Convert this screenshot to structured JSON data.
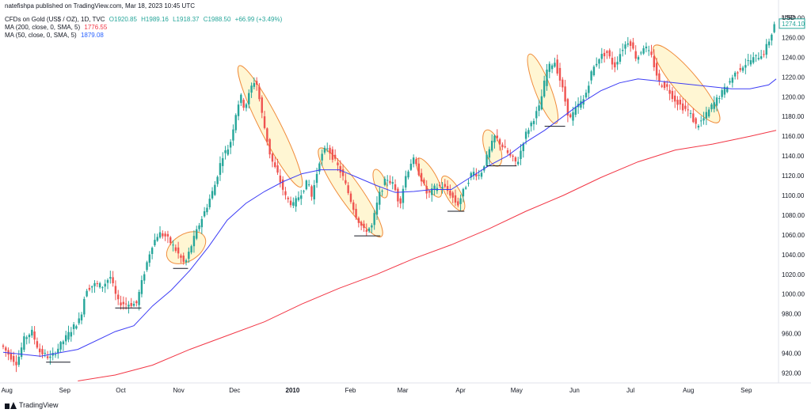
{
  "publisher_line": "natefishpa published on TradingView.com, Mar 18, 2023 10:45 UTC",
  "legend": {
    "symbol": "CFDs on Gold (US$ / OZ), 1D, TVC",
    "ohlc": {
      "o_label": "O1920.85",
      "h_label": "H1989.16",
      "l_label": "L1918.37",
      "c_label": "C1988.50",
      "change": "+66.99 (+3.49%)"
    },
    "ma200": {
      "label": "MA (200, close, 0, SMA, 5)",
      "value": "1776.55"
    },
    "ma50": {
      "label": "MA (50, close, 0, SMA, 5)",
      "value": "1879.08"
    }
  },
  "footer": {
    "brand": "TradingView"
  },
  "colors": {
    "up": "#26a69a",
    "down": "#ef5350",
    "ma200": "#f23645",
    "ma50": "#3d3df5",
    "highlight_fill": "#fff3c4",
    "highlight_stroke": "#f08c3c",
    "axis_text": "#131722"
  },
  "chart_data": {
    "type": "candlestick",
    "currency_label": "USD",
    "ylim": [
      910,
      1290
    ],
    "y_ticks": [
      920,
      940,
      960,
      980,
      1000,
      1020,
      1040,
      1060,
      1080,
      1100,
      1120,
      1140,
      1160,
      1180,
      1200,
      1220,
      1240,
      1260,
      1280
    ],
    "x_ticks": [
      {
        "label": "Aug",
        "day": 2
      },
      {
        "label": "Sep",
        "day": 33
      },
      {
        "label": "Oct",
        "day": 63
      },
      {
        "label": "Nov",
        "day": 94
      },
      {
        "label": "Dec",
        "day": 124
      },
      {
        "label": "2010",
        "day": 155
      },
      {
        "label": "Feb",
        "day": 186
      },
      {
        "label": "Mar",
        "day": 214
      },
      {
        "label": "Apr",
        "day": 245
      },
      {
        "label": "May",
        "day": 275
      },
      {
        "label": "Jun",
        "day": 306
      },
      {
        "label": "Jul",
        "day": 336
      },
      {
        "label": "Aug",
        "day": 367
      },
      {
        "label": "Sep",
        "day": 398
      }
    ],
    "day_range": [
      0,
      414
    ],
    "last_price_label": "1274.10",
    "last_price": 1274.1,
    "price_path": [
      [
        0,
        948
      ],
      [
        4,
        938
      ],
      [
        8,
        930
      ],
      [
        12,
        955
      ],
      [
        16,
        962
      ],
      [
        20,
        942
      ],
      [
        26,
        935
      ],
      [
        32,
        950
      ],
      [
        38,
        966
      ],
      [
        42,
        975
      ],
      [
        45,
        1005
      ],
      [
        50,
        1010
      ],
      [
        54,
        1008
      ],
      [
        58,
        1018
      ],
      [
        62,
        992
      ],
      [
        66,
        990
      ],
      [
        72,
        990
      ],
      [
        76,
        1020
      ],
      [
        80,
        1048
      ],
      [
        84,
        1062
      ],
      [
        88,
        1058
      ],
      [
        92,
        1048
      ],
      [
        96,
        1036
      ],
      [
        98,
        1030
      ],
      [
        102,
        1052
      ],
      [
        106,
        1072
      ],
      [
        110,
        1090
      ],
      [
        114,
        1110
      ],
      [
        118,
        1140
      ],
      [
        122,
        1150
      ],
      [
        126,
        1190
      ],
      [
        128,
        1200
      ],
      [
        130,
        1188
      ],
      [
        134,
        1212
      ],
      [
        136,
        1218
      ],
      [
        140,
        1175
      ],
      [
        144,
        1138
      ],
      [
        148,
        1120
      ],
      [
        152,
        1098
      ],
      [
        156,
        1090
      ],
      [
        160,
        1102
      ],
      [
        164,
        1115
      ],
      [
        166,
        1098
      ],
      [
        170,
        1135
      ],
      [
        174,
        1150
      ],
      [
        178,
        1136
      ],
      [
        182,
        1122
      ],
      [
        186,
        1100
      ],
      [
        190,
        1078
      ],
      [
        194,
        1064
      ],
      [
        198,
        1068
      ],
      [
        202,
        1100
      ],
      [
        206,
        1118
      ],
      [
        210,
        1110
      ],
      [
        213,
        1090
      ],
      [
        216,
        1118
      ],
      [
        220,
        1138
      ],
      [
        224,
        1120
      ],
      [
        228,
        1100
      ],
      [
        232,
        1108
      ],
      [
        236,
        1110
      ],
      [
        240,
        1102
      ],
      [
        244,
        1090
      ],
      [
        248,
        1108
      ],
      [
        252,
        1124
      ],
      [
        256,
        1120
      ],
      [
        260,
        1140
      ],
      [
        264,
        1160
      ],
      [
        268,
        1150
      ],
      [
        272,
        1140
      ],
      [
        276,
        1132
      ],
      [
        280,
        1160
      ],
      [
        284,
        1175
      ],
      [
        288,
        1190
      ],
      [
        292,
        1228
      ],
      [
        296,
        1236
      ],
      [
        300,
        1210
      ],
      [
        304,
        1176
      ],
      [
        308,
        1190
      ],
      [
        312,
        1198
      ],
      [
        316,
        1226
      ],
      [
        320,
        1240
      ],
      [
        324,
        1245
      ],
      [
        328,
        1230
      ],
      [
        332,
        1248
      ],
      [
        336,
        1258
      ],
      [
        340,
        1238
      ],
      [
        344,
        1252
      ],
      [
        348,
        1240
      ],
      [
        352,
        1214
      ],
      [
        356,
        1210
      ],
      [
        360,
        1198
      ],
      [
        364,
        1190
      ],
      [
        368,
        1185
      ],
      [
        372,
        1170
      ],
      [
        376,
        1178
      ],
      [
        380,
        1190
      ],
      [
        384,
        1200
      ],
      [
        388,
        1210
      ],
      [
        392,
        1222
      ],
      [
        396,
        1230
      ],
      [
        400,
        1236
      ],
      [
        404,
        1240
      ],
      [
        408,
        1244
      ],
      [
        412,
        1262
      ],
      [
        414,
        1276
      ]
    ],
    "ma50_path": [
      [
        0,
        941
      ],
      [
        20,
        937
      ],
      [
        40,
        944
      ],
      [
        60,
        962
      ],
      [
        70,
        968
      ],
      [
        80,
        988
      ],
      [
        90,
        1004
      ],
      [
        100,
        1024
      ],
      [
        110,
        1048
      ],
      [
        120,
        1075
      ],
      [
        130,
        1092
      ],
      [
        140,
        1104
      ],
      [
        150,
        1114
      ],
      [
        160,
        1122
      ],
      [
        170,
        1126
      ],
      [
        180,
        1126
      ],
      [
        190,
        1118
      ],
      [
        200,
        1110
      ],
      [
        210,
        1103
      ],
      [
        220,
        1104
      ],
      [
        230,
        1106
      ],
      [
        240,
        1106
      ],
      [
        250,
        1118
      ],
      [
        260,
        1130
      ],
      [
        270,
        1140
      ],
      [
        280,
        1154
      ],
      [
        290,
        1166
      ],
      [
        300,
        1180
      ],
      [
        310,
        1194
      ],
      [
        320,
        1206
      ],
      [
        330,
        1214
      ],
      [
        340,
        1218
      ],
      [
        350,
        1216
      ],
      [
        360,
        1214
      ],
      [
        370,
        1212
      ],
      [
        380,
        1210
      ],
      [
        390,
        1208
      ],
      [
        400,
        1208
      ],
      [
        410,
        1212
      ],
      [
        414,
        1218
      ]
    ],
    "ma200_path": [
      [
        40,
        912
      ],
      [
        60,
        918
      ],
      [
        80,
        928
      ],
      [
        100,
        944
      ],
      [
        120,
        958
      ],
      [
        140,
        972
      ],
      [
        160,
        990
      ],
      [
        180,
        1006
      ],
      [
        200,
        1020
      ],
      [
        220,
        1036
      ],
      [
        240,
        1050
      ],
      [
        260,
        1066
      ],
      [
        280,
        1084
      ],
      [
        300,
        1100
      ],
      [
        320,
        1118
      ],
      [
        340,
        1134
      ],
      [
        360,
        1146
      ],
      [
        380,
        1152
      ],
      [
        400,
        1160
      ],
      [
        414,
        1166
      ]
    ],
    "support_lines": [
      {
        "day1": 23,
        "day2": 36,
        "price": 931
      },
      {
        "day1": 60,
        "day2": 74,
        "price": 986
      },
      {
        "day1": 91,
        "day2": 99,
        "price": 1026
      },
      {
        "day1": 188,
        "day2": 202,
        "price": 1059
      },
      {
        "day1": 238,
        "day2": 247,
        "price": 1084
      },
      {
        "day1": 259,
        "day2": 275,
        "price": 1130
      },
      {
        "day1": 290,
        "day2": 301,
        "price": 1170
      }
    ],
    "pattern_highlights": [
      {
        "day": 98,
        "price": 1047,
        "rx": 17,
        "ry": 27,
        "angle": 58
      },
      {
        "day": 143,
        "price": 1170,
        "rx": 86,
        "ry": 13,
        "angle": 63
      },
      {
        "day": 186,
        "price": 1103,
        "rx": 68,
        "ry": 14,
        "angle": 55
      },
      {
        "day": 202,
        "price": 1112,
        "rx": 19,
        "ry": 7,
        "angle": 70
      },
      {
        "day": 228,
        "price": 1118,
        "rx": 28,
        "ry": 9,
        "angle": 60
      },
      {
        "day": 241,
        "price": 1102,
        "rx": 25,
        "ry": 9,
        "angle": 60
      },
      {
        "day": 262,
        "price": 1148,
        "rx": 24,
        "ry": 10,
        "angle": 72
      },
      {
        "day": 289,
        "price": 1208,
        "rx": 47,
        "ry": 10,
        "angle": 69
      },
      {
        "day": 366,
        "price": 1213,
        "rx": 63,
        "ry": 15,
        "angle": 50
      }
    ]
  }
}
